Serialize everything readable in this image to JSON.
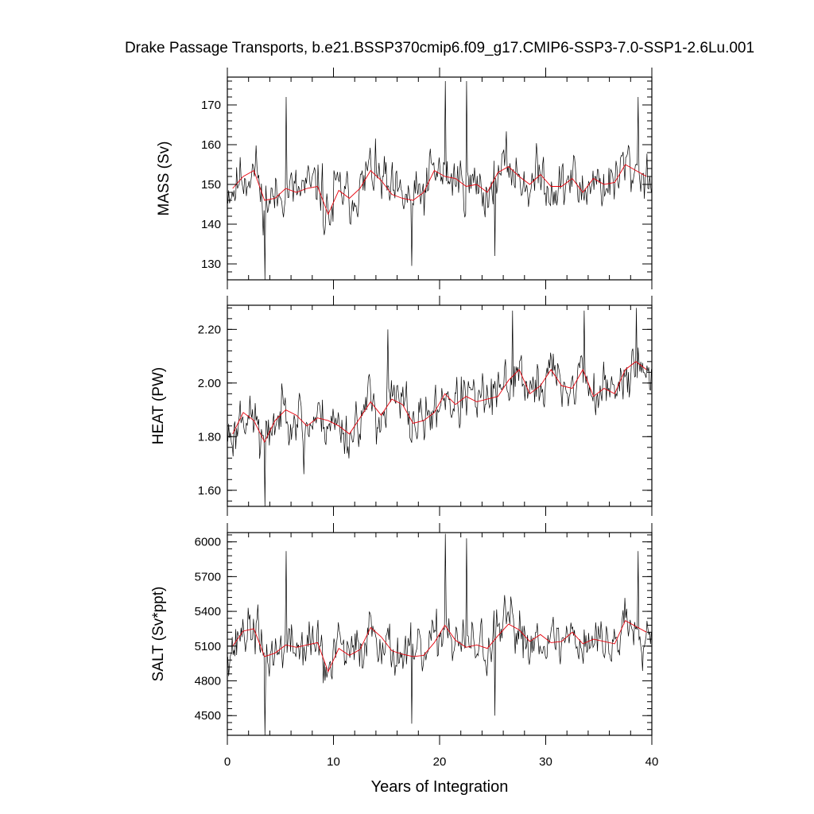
{
  "chart_data": {
    "title": "Drake Passage Transports, b.e21.BSSP370cmip6.f09_g17.CMIP6-SSP3-7.0-SSP1-2.6Lu.001",
    "xlabel": "Years of Integration",
    "xlim": [
      0,
      40
    ],
    "xticks": [
      "0",
      "10",
      "20",
      "30",
      "40"
    ],
    "grid": false,
    "legend": "none",
    "series_colors": {
      "monthly": "#000000",
      "annual": "#e8000b"
    },
    "panels": [
      {
        "type": "line",
        "ylabel": "MASS (Sv)",
        "ylim": [
          126,
          177
        ],
        "yticks": [
          "130",
          "140",
          "150",
          "160",
          "170"
        ],
        "annual_x": [
          0.5,
          1.5,
          2.5,
          3.5,
          4.5,
          5.5,
          6.5,
          7.5,
          8.5,
          9.5,
          10.5,
          11.5,
          12.5,
          13.5,
          14.5,
          15.5,
          16.5,
          17.5,
          18.5,
          19.5,
          20.5,
          21.5,
          22.5,
          23.5,
          24.5,
          25.5,
          26.5,
          27.5,
          28.5,
          29.5,
          30.5,
          31.5,
          32.5,
          33.5,
          34.5,
          35.5,
          36.5,
          37.5,
          38.5,
          39.5
        ],
        "annual_y": [
          149,
          152,
          153.5,
          146,
          146.5,
          149,
          148,
          149,
          149.5,
          142.5,
          148.5,
          146.5,
          149,
          153.5,
          151,
          147.5,
          146.5,
          146,
          148,
          153.5,
          152,
          151.5,
          149.5,
          150,
          148,
          153,
          154.5,
          152,
          150,
          152.5,
          149.5,
          149.5,
          151.5,
          148,
          151.5,
          150,
          150.5,
          155,
          153.5,
          152
        ],
        "monthly_seed": 11,
        "monthly_amp": 9,
        "spikes": [
          [
            3.5,
            126
          ],
          [
            20.5,
            176
          ],
          [
            22.5,
            176
          ],
          [
            5.5,
            172
          ],
          [
            38.7,
            172
          ],
          [
            17.4,
            129.5
          ],
          [
            25.2,
            132
          ]
        ]
      },
      {
        "type": "line",
        "ylabel": "HEAT (PW)",
        "ylim": [
          1.54,
          2.29
        ],
        "yticks": [
          "1.60",
          "1.80",
          "2.00",
          "2.20"
        ],
        "annual_x": [
          0.5,
          1.5,
          2.5,
          3.5,
          4.5,
          5.5,
          6.5,
          7.5,
          8.5,
          9.5,
          10.5,
          11.5,
          12.5,
          13.5,
          14.5,
          15.5,
          16.5,
          17.5,
          18.5,
          19.5,
          20.5,
          21.5,
          22.5,
          23.5,
          24.5,
          25.5,
          26.5,
          27.5,
          28.5,
          29.5,
          30.5,
          31.5,
          32.5,
          33.5,
          34.5,
          35.5,
          36.5,
          37.5,
          38.5,
          39.5
        ],
        "annual_y": [
          1.81,
          1.89,
          1.86,
          1.78,
          1.86,
          1.9,
          1.88,
          1.84,
          1.87,
          1.86,
          1.84,
          1.81,
          1.87,
          1.93,
          1.88,
          1.94,
          1.92,
          1.85,
          1.86,
          1.89,
          1.96,
          1.92,
          1.95,
          1.93,
          1.94,
          1.95,
          2.01,
          2.05,
          1.96,
          1.99,
          2.05,
          1.99,
          1.98,
          2.05,
          1.95,
          1.98,
          1.96,
          2.05,
          2.08,
          2.05
        ],
        "monthly_seed": 23,
        "monthly_amp": 0.13,
        "spikes": [
          [
            3.5,
            1.54
          ],
          [
            26.9,
            2.27
          ],
          [
            38.5,
            2.28
          ],
          [
            15.1,
            2.2
          ],
          [
            33.6,
            2.27
          ],
          [
            7.2,
            1.66
          ]
        ]
      },
      {
        "type": "line",
        "ylabel": "SALT (Sv*ppt)",
        "ylim": [
          4330,
          6080
        ],
        "yticks": [
          "4500",
          "4800",
          "5100",
          "5400",
          "5700",
          "6000"
        ],
        "annual_x": [
          0.5,
          1.5,
          2.5,
          3.5,
          4.5,
          5.5,
          6.5,
          7.5,
          8.5,
          9.5,
          10.5,
          11.5,
          12.5,
          13.5,
          14.5,
          15.5,
          16.5,
          17.5,
          18.5,
          19.5,
          20.5,
          21.5,
          22.5,
          23.5,
          24.5,
          25.5,
          26.5,
          27.5,
          28.5,
          29.5,
          30.5,
          31.5,
          32.5,
          33.5,
          34.5,
          35.5,
          36.5,
          37.5,
          38.5,
          39.5
        ],
        "annual_y": [
          5100,
          5230,
          5250,
          5010,
          5040,
          5110,
          5090,
          5110,
          5130,
          4880,
          5080,
          5020,
          5070,
          5260,
          5180,
          5060,
          5030,
          5010,
          5020,
          5130,
          5280,
          5150,
          5090,
          5110,
          5080,
          5190,
          5290,
          5240,
          5140,
          5200,
          5130,
          5140,
          5220,
          5120,
          5160,
          5140,
          5120,
          5320,
          5270,
          5220
        ],
        "monthly_seed": 37,
        "monthly_amp": 300,
        "spikes": [
          [
            3.5,
            4330
          ],
          [
            20.5,
            6070
          ],
          [
            22.5,
            6030
          ],
          [
            5.5,
            5920
          ],
          [
            38.7,
            5920
          ],
          [
            17.4,
            4430
          ],
          [
            25.2,
            4500
          ]
        ]
      }
    ]
  }
}
